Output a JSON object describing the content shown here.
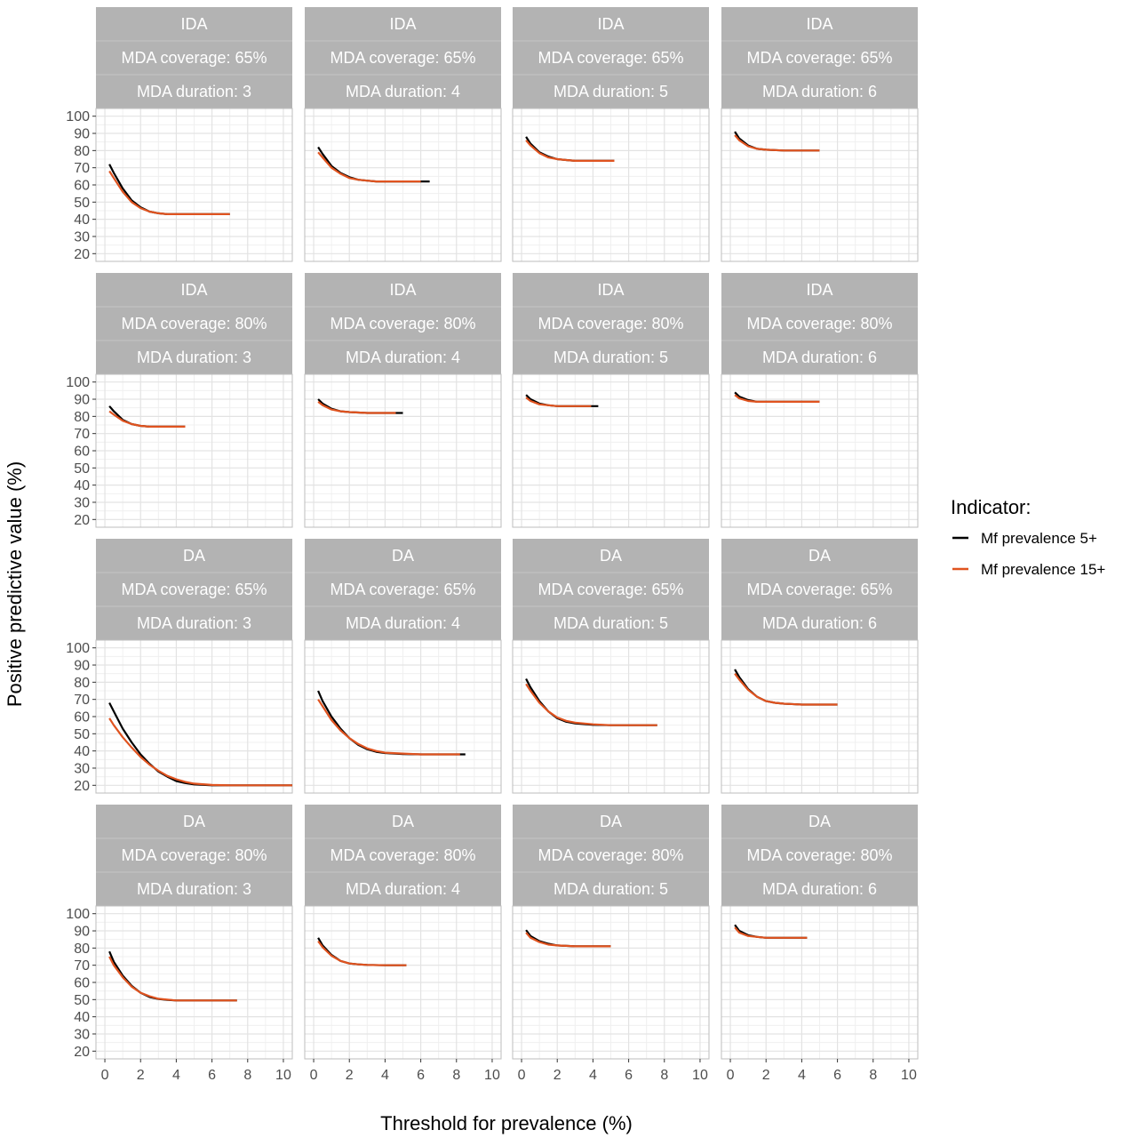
{
  "chart_data": {
    "type": "line",
    "xlabel": "Threshold for prevalence (%)",
    "ylabel": "Positive predictive value (%)",
    "xlim": [
      -0.5,
      10.5
    ],
    "ylim": [
      15.5,
      104.5
    ],
    "x_ticks": [
      0,
      2,
      4,
      6,
      8,
      10
    ],
    "y_ticks": [
      20,
      30,
      40,
      50,
      60,
      70,
      80,
      90,
      100
    ],
    "grid": true,
    "legend": {
      "title": "Indicator:",
      "placement": "right",
      "entries": [
        {
          "name": "Mf prevalence 5+",
          "color": "#000000"
        },
        {
          "name": "Mf prevalence 15+",
          "color": "#e0531f"
        }
      ]
    },
    "series_colors": {
      "Mf prevalence 5+": "#000000",
      "Mf prevalence 15+": "#e0531f"
    },
    "panels": [
      {
        "strip": [
          "IDA",
          "MDA coverage: 65%",
          "MDA duration: 3"
        ],
        "series": [
          {
            "name": "Mf prevalence 5+",
            "x": [
              0.25,
              0.5,
              1,
              1.5,
              2,
              2.5,
              3,
              3.5,
              4,
              5,
              6,
              7
            ],
            "y": [
              72,
              67,
              58,
              51,
              47,
              44.5,
              43.5,
              43,
              43,
              43,
              43,
              43
            ]
          },
          {
            "name": "Mf prevalence 15+",
            "x": [
              0.25,
              0.5,
              1,
              1.5,
              2,
              2.5,
              3,
              3.5,
              4,
              5,
              6,
              7
            ],
            "y": [
              68,
              64,
              56,
              50,
              46.5,
              44.5,
              43.5,
              43,
              43,
              43,
              43,
              43
            ]
          }
        ]
      },
      {
        "strip": [
          "IDA",
          "MDA coverage: 65%",
          "MDA duration: 4"
        ],
        "series": [
          {
            "name": "Mf prevalence 5+",
            "x": [
              0.25,
              0.5,
              1,
              1.5,
              2,
              2.5,
              3,
              3.5,
              4,
              5,
              6,
              6.5
            ],
            "y": [
              82,
              78,
              71,
              67,
              64.5,
              63,
              62.5,
              62,
              62,
              62,
              62,
              62
            ]
          },
          {
            "name": "Mf prevalence 15+",
            "x": [
              0.25,
              0.5,
              1,
              1.5,
              2,
              2.5,
              3,
              3.5,
              4,
              5,
              6
            ],
            "y": [
              79,
              76,
              70,
              66.5,
              64,
              63,
              62.5,
              62,
              62,
              62,
              62
            ]
          }
        ]
      },
      {
        "strip": [
          "IDA",
          "MDA coverage: 65%",
          "MDA duration: 5"
        ],
        "series": [
          {
            "name": "Mf prevalence 5+",
            "x": [
              0.25,
              0.5,
              1,
              1.5,
              2,
              2.5,
              3,
              4,
              5.2
            ],
            "y": [
              88,
              84,
              79,
              76.5,
              75,
              74.5,
              74,
              74,
              74
            ]
          },
          {
            "name": "Mf prevalence 15+",
            "x": [
              0.25,
              0.5,
              1,
              1.5,
              2,
              2.5,
              3,
              4,
              5.2
            ],
            "y": [
              86,
              83,
              78.5,
              76,
              75,
              74.5,
              74,
              74,
              74
            ]
          }
        ]
      },
      {
        "strip": [
          "IDA",
          "MDA coverage: 65%",
          "MDA duration: 6"
        ],
        "series": [
          {
            "name": "Mf prevalence 5+",
            "x": [
              0.25,
              0.5,
              1,
              1.5,
              2,
              3,
              4,
              5
            ],
            "y": [
              91,
              87,
              83,
              81,
              80.5,
              80,
              80,
              80
            ]
          },
          {
            "name": "Mf prevalence 15+",
            "x": [
              0.25,
              0.5,
              1,
              1.5,
              2,
              3,
              4,
              5
            ],
            "y": [
              89,
              86,
              82.5,
              81,
              80.5,
              80,
              80,
              80
            ]
          }
        ]
      },
      {
        "strip": [
          "IDA",
          "MDA coverage: 80%",
          "MDA duration: 3"
        ],
        "series": [
          {
            "name": "Mf prevalence 5+",
            "x": [
              0.25,
              0.5,
              1,
              1.5,
              2,
              2.5,
              3,
              4,
              4.5
            ],
            "y": [
              86,
              83,
              78,
              75.5,
              74.5,
              74,
              74,
              74,
              74
            ]
          },
          {
            "name": "Mf prevalence 15+",
            "x": [
              0.25,
              0.5,
              1,
              1.5,
              2,
              2.5,
              3,
              4,
              4.5
            ],
            "y": [
              83,
              81,
              77.5,
              75.5,
              74.5,
              74,
              74,
              74,
              74
            ]
          }
        ]
      },
      {
        "strip": [
          "IDA",
          "MDA coverage: 80%",
          "MDA duration: 4"
        ],
        "series": [
          {
            "name": "Mf prevalence 5+",
            "x": [
              0.25,
              0.5,
              1,
              1.5,
              2,
              3,
              4,
              5
            ],
            "y": [
              90,
              87.5,
              84.5,
              83,
              82.5,
              82,
              82,
              82
            ]
          },
          {
            "name": "Mf prevalence 15+",
            "x": [
              0.25,
              0.5,
              1,
              1.5,
              2,
              3,
              4,
              4.6
            ],
            "y": [
              88.5,
              86.5,
              84,
              83,
              82.5,
              82,
              82,
              82
            ]
          }
        ]
      },
      {
        "strip": [
          "IDA",
          "MDA coverage: 80%",
          "MDA duration: 5"
        ],
        "series": [
          {
            "name": "Mf prevalence 5+",
            "x": [
              0.25,
              0.5,
              1,
              1.5,
              2,
              3,
              4,
              4.3
            ],
            "y": [
              92.5,
              90,
              87.5,
              86.5,
              86,
              86,
              86,
              86
            ]
          },
          {
            "name": "Mf prevalence 15+",
            "x": [
              0.25,
              0.5,
              1,
              1.5,
              2,
              3,
              3.9
            ],
            "y": [
              91,
              89,
              87,
              86.5,
              86,
              86,
              86
            ]
          }
        ]
      },
      {
        "strip": [
          "IDA",
          "MDA coverage: 80%",
          "MDA duration: 6"
        ],
        "series": [
          {
            "name": "Mf prevalence 5+",
            "x": [
              0.25,
              0.5,
              1,
              1.5,
              2,
              3,
              4,
              5
            ],
            "y": [
              94,
              91.5,
              89.5,
              88.5,
              88.5,
              88.5,
              88.5,
              88.5
            ]
          },
          {
            "name": "Mf prevalence 15+",
            "x": [
              0.25,
              0.5,
              1,
              1.5,
              2,
              3,
              4,
              5
            ],
            "y": [
              92.5,
              90.5,
              89,
              88.5,
              88.5,
              88.5,
              88.5,
              88.5
            ]
          }
        ]
      },
      {
        "strip": [
          "DA",
          "MDA coverage: 65%",
          "MDA duration: 3"
        ],
        "series": [
          {
            "name": "Mf prevalence 5+",
            "x": [
              0.25,
              0.5,
              1,
              1.5,
              2,
              2.5,
              3,
              3.5,
              4,
              4.5,
              5,
              6,
              7,
              8,
              9,
              10.5
            ],
            "y": [
              68,
              63,
              53,
              45,
              38,
              32.5,
              28,
              25,
              22.5,
              21.3,
              20.5,
              20,
              20,
              20,
              20,
              20
            ]
          },
          {
            "name": "Mf prevalence 15+",
            "x": [
              0.25,
              0.5,
              1,
              1.5,
              2,
              2.5,
              3,
              3.5,
              4,
              4.5,
              5,
              6,
              7,
              8,
              9,
              10.5
            ],
            "y": [
              59,
              55,
              48,
              42,
              36.5,
              32,
              28.5,
              25.5,
              23.5,
              22,
              21,
              20.2,
              20,
              20,
              20,
              20
            ]
          }
        ]
      },
      {
        "strip": [
          "DA",
          "MDA coverage: 65%",
          "MDA duration: 4"
        ],
        "series": [
          {
            "name": "Mf prevalence 5+",
            "x": [
              0.25,
              0.5,
              1,
              1.5,
              2,
              2.5,
              3,
              3.5,
              4,
              5,
              6,
              7,
              8,
              8.5
            ],
            "y": [
              75,
              69,
              60,
              53,
              47.5,
              43.5,
              41,
              39.5,
              38.8,
              38.2,
              38,
              38,
              38,
              38
            ]
          },
          {
            "name": "Mf prevalence 15+",
            "x": [
              0.25,
              0.5,
              1,
              1.5,
              2,
              2.5,
              3,
              3.5,
              4,
              5,
              6,
              7,
              8.2
            ],
            "y": [
              70,
              66,
              58,
              52,
              47.5,
              44,
              41.5,
              40,
              39,
              38.5,
              38,
              38,
              38
            ]
          }
        ]
      },
      {
        "strip": [
          "DA",
          "MDA coverage: 65%",
          "MDA duration: 5"
        ],
        "series": [
          {
            "name": "Mf prevalence 5+",
            "x": [
              0.25,
              0.5,
              1,
              1.5,
              2,
              2.5,
              3,
              4,
              5,
              6,
              7,
              7.6
            ],
            "y": [
              82,
              77,
              69,
              63,
              59,
              57,
              56,
              55.2,
              55,
              55,
              55,
              55
            ]
          },
          {
            "name": "Mf prevalence 15+",
            "x": [
              0.25,
              0.5,
              1,
              1.5,
              2,
              2.5,
              3,
              4,
              5,
              6,
              7,
              7.6
            ],
            "y": [
              79,
              75,
              68,
              63,
              59.5,
              57.5,
              56.5,
              55.5,
              55,
              55,
              55,
              55
            ]
          }
        ]
      },
      {
        "strip": [
          "DA",
          "MDA coverage: 65%",
          "MDA duration: 6"
        ],
        "series": [
          {
            "name": "Mf prevalence 5+",
            "x": [
              0.25,
              0.5,
              1,
              1.5,
              2,
              2.5,
              3,
              4,
              5,
              6
            ],
            "y": [
              87.5,
              83,
              76,
              71.5,
              69,
              68,
              67.5,
              67,
              67,
              67
            ]
          },
          {
            "name": "Mf prevalence 15+",
            "x": [
              0.25,
              0.5,
              1,
              1.5,
              2,
              2.5,
              3,
              4,
              5,
              6
            ],
            "y": [
              85,
              81.5,
              75.5,
              71.5,
              69,
              68,
              67.5,
              67,
              67,
              67
            ]
          }
        ]
      },
      {
        "strip": [
          "DA",
          "MDA coverage: 80%",
          "MDA duration: 3"
        ],
        "series": [
          {
            "name": "Mf prevalence 5+",
            "x": [
              0.25,
              0.5,
              1,
              1.5,
              2,
              2.5,
              3,
              3.5,
              4,
              5,
              6,
              7.4
            ],
            "y": [
              78,
              72,
              64,
              58,
              54,
              51.5,
              50.3,
              49.8,
              49.5,
              49.5,
              49.5,
              49.5
            ]
          },
          {
            "name": "Mf prevalence 15+",
            "x": [
              0.25,
              0.5,
              1,
              1.5,
              2,
              2.5,
              3,
              3.5,
              4,
              5,
              6,
              7.4
            ],
            "y": [
              75,
              70,
              63,
              57.5,
              54,
              52,
              50.5,
              50,
              49.5,
              49.5,
              49.5,
              49.5
            ]
          }
        ]
      },
      {
        "strip": [
          "DA",
          "MDA coverage: 80%",
          "MDA duration: 4"
        ],
        "series": [
          {
            "name": "Mf prevalence 5+",
            "x": [
              0.25,
              0.5,
              1,
              1.5,
              2,
              2.5,
              3,
              4,
              5.2
            ],
            "y": [
              86,
              81.5,
              76,
              72.5,
              71,
              70.5,
              70.2,
              70,
              70
            ]
          },
          {
            "name": "Mf prevalence 15+",
            "x": [
              0.25,
              0.5,
              1,
              1.5,
              2,
              2.5,
              3,
              4,
              5.2
            ],
            "y": [
              84,
              80.5,
              75.5,
              72.5,
              71,
              70.5,
              70.2,
              70,
              70
            ]
          }
        ]
      },
      {
        "strip": [
          "DA",
          "MDA coverage: 80%",
          "MDA duration: 5"
        ],
        "series": [
          {
            "name": "Mf prevalence 5+",
            "x": [
              0.25,
              0.5,
              1,
              1.5,
              2,
              3,
              4,
              5
            ],
            "y": [
              90.5,
              87,
              84,
              82.5,
              81.5,
              81,
              81,
              81
            ]
          },
          {
            "name": "Mf prevalence 15+",
            "x": [
              0.25,
              0.5,
              1,
              1.5,
              2,
              3,
              4,
              5
            ],
            "y": [
              89,
              86,
              83.5,
              82,
              81.5,
              81,
              81,
              81
            ]
          }
        ]
      },
      {
        "strip": [
          "DA",
          "MDA coverage: 80%",
          "MDA duration: 6"
        ],
        "series": [
          {
            "name": "Mf prevalence 5+",
            "x": [
              0.25,
              0.5,
              1,
              1.5,
              2,
              3,
              4,
              4.3
            ],
            "y": [
              93.5,
              90,
              87.5,
              86.5,
              86,
              86,
              86,
              86
            ]
          },
          {
            "name": "Mf prevalence 15+",
            "x": [
              0.25,
              0.5,
              1,
              1.5,
              2,
              3,
              4,
              4.3
            ],
            "y": [
              92,
              89,
              87,
              86.5,
              86,
              86,
              86,
              86
            ]
          }
        ]
      }
    ]
  }
}
